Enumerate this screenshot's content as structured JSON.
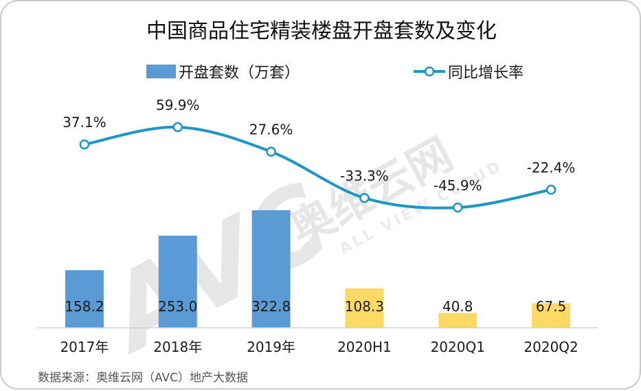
{
  "chart_data": {
    "type": "bar",
    "title": "中国商品住宅精装楼盘开盘套数及变化",
    "categories": [
      "2017年",
      "2018年",
      "2019年",
      "2020H1",
      "2020Q1",
      "2020Q2"
    ],
    "series": [
      {
        "name": "开盘套数（万套）",
        "type": "bar",
        "values": [
          158.2,
          253.0,
          322.8,
          108.3,
          40.8,
          67.5
        ],
        "value_labels": [
          "158.2",
          "253.0",
          "322.8",
          "108.3",
          "40.8",
          "67.5"
        ],
        "colors": [
          "#5b9bd5",
          "#5b9bd5",
          "#5b9bd5",
          "#ffd966",
          "#ffd966",
          "#ffd966"
        ]
      },
      {
        "name": "同比增长率",
        "type": "line",
        "values": [
          37.1,
          59.9,
          27.6,
          -33.3,
          -45.9,
          -22.4
        ],
        "value_labels": [
          "37.1%",
          "59.9%",
          "27.6%",
          "-33.3%",
          "-45.9%",
          "-22.4%"
        ],
        "color": "#1b96c6"
      }
    ],
    "legend_position": "top",
    "grid": false,
    "source": "数据来源：奥维云网（AVC）地产大数据"
  },
  "watermark": {
    "logo_text": "AVC",
    "brand_cn": "奥维云网",
    "brand_en": "ALL VIEW CLOUD"
  }
}
